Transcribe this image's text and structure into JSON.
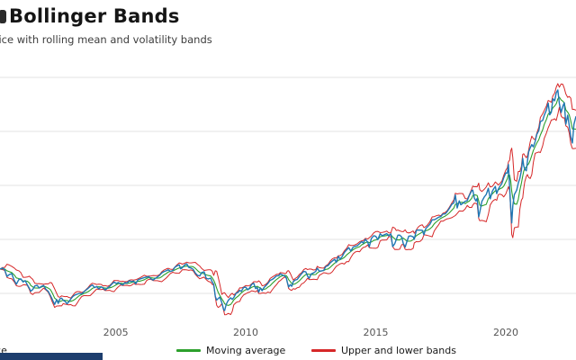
{
  "chart_data": {
    "type": "line",
    "title": "Bollinger Bands",
    "subtitle": "Price with rolling mean and volatility bands",
    "xlabel": "",
    "ylabel": "",
    "grid": true,
    "legend_position": "bottom",
    "x_ticks": [
      2005,
      2010,
      2015,
      2020
    ],
    "xlim": [
      2000.55,
      2022.7
    ],
    "ylim": [
      500,
      5500
    ],
    "y_gridlines": [
      1000,
      2000,
      3000,
      4000,
      5000
    ],
    "series_colors": {
      "price": "#1f77b4",
      "moving_average": "#2ca02c",
      "bands": "#d62728"
    },
    "band_window": 5,
    "band_k": 2,
    "points": [
      [
        2000.55,
        1450
      ],
      [
        2000.65,
        1470
      ],
      [
        2000.73,
        1436
      ],
      [
        2000.82,
        1314
      ],
      [
        2000.9,
        1347
      ],
      [
        2001.0,
        1366
      ],
      [
        2001.1,
        1239
      ],
      [
        2001.18,
        1170
      ],
      [
        2001.27,
        1253
      ],
      [
        2001.35,
        1270
      ],
      [
        2001.44,
        1211
      ],
      [
        2001.52,
        1236
      ],
      [
        2001.6,
        1160
      ],
      [
        2001.68,
        1092
      ],
      [
        2001.73,
        1040
      ],
      [
        2001.81,
        1071
      ],
      [
        2001.89,
        1139
      ],
      [
        2001.98,
        1148
      ],
      [
        2002.06,
        1100
      ],
      [
        2002.15,
        1131
      ],
      [
        2002.23,
        1147
      ],
      [
        2002.31,
        1077
      ],
      [
        2002.4,
        1040
      ],
      [
        2002.48,
        968
      ],
      [
        2002.54,
        912
      ],
      [
        2002.6,
        847
      ],
      [
        2002.65,
        797
      ],
      [
        2002.73,
        885
      ],
      [
        2002.79,
        815
      ],
      [
        2002.85,
        900
      ],
      [
        2002.92,
        912
      ],
      [
        2002.98,
        875
      ],
      [
        2003.06,
        848
      ],
      [
        2003.13,
        807
      ],
      [
        2003.19,
        841
      ],
      [
        2003.27,
        895
      ],
      [
        2003.35,
        944
      ],
      [
        2003.44,
        971
      ],
      [
        2003.52,
        985
      ],
      [
        2003.6,
        1000
      ],
      [
        2003.69,
        990
      ],
      [
        2003.77,
        1026
      ],
      [
        2003.85,
        1058
      ],
      [
        2003.94,
        1095
      ],
      [
        2004.02,
        1131
      ],
      [
        2004.1,
        1157
      ],
      [
        2004.19,
        1109
      ],
      [
        2004.27,
        1126
      ],
      [
        2004.35,
        1084
      ],
      [
        2004.44,
        1121
      ],
      [
        2004.52,
        1096
      ],
      [
        2004.6,
        1064
      ],
      [
        2004.69,
        1103
      ],
      [
        2004.77,
        1130
      ],
      [
        2004.85,
        1173
      ],
      [
        2004.94,
        1211
      ],
      [
        2005.02,
        1181
      ],
      [
        2005.1,
        1204
      ],
      [
        2005.19,
        1172
      ],
      [
        2005.27,
        1157
      ],
      [
        2005.35,
        1199
      ],
      [
        2005.44,
        1191
      ],
      [
        2005.52,
        1234
      ],
      [
        2005.6,
        1218
      ],
      [
        2005.69,
        1228
      ],
      [
        2005.77,
        1176
      ],
      [
        2005.85,
        1249
      ],
      [
        2005.94,
        1268
      ],
      [
        2006.02,
        1280
      ],
      [
        2006.1,
        1294
      ],
      [
        2006.19,
        1303
      ],
      [
        2006.27,
        1311
      ],
      [
        2006.35,
        1270
      ],
      [
        2006.44,
        1246
      ],
      [
        2006.52,
        1278
      ],
      [
        2006.6,
        1303
      ],
      [
        2006.69,
        1336
      ],
      [
        2006.77,
        1378
      ],
      [
        2006.85,
        1401
      ],
      [
        2006.94,
        1418
      ],
      [
        2007.02,
        1438
      ],
      [
        2007.1,
        1407
      ],
      [
        2007.19,
        1421
      ],
      [
        2007.27,
        1482
      ],
      [
        2007.35,
        1508
      ],
      [
        2007.44,
        1530
      ],
      [
        2007.5,
        1455
      ],
      [
        2007.56,
        1474
      ],
      [
        2007.65,
        1527
      ],
      [
        2007.73,
        1549
      ],
      [
        2007.81,
        1481
      ],
      [
        2007.9,
        1468
      ],
      [
        2007.98,
        1445
      ],
      [
        2008.06,
        1378
      ],
      [
        2008.15,
        1331
      ],
      [
        2008.23,
        1323
      ],
      [
        2008.31,
        1386
      ],
      [
        2008.4,
        1400
      ],
      [
        2008.48,
        1280
      ],
      [
        2008.56,
        1267
      ],
      [
        2008.65,
        1283
      ],
      [
        2008.71,
        1213
      ],
      [
        2008.77,
        1166
      ],
      [
        2008.83,
        946
      ],
      [
        2008.88,
        876
      ],
      [
        2008.94,
        903
      ],
      [
        2009.0,
        931
      ],
      [
        2009.08,
        826
      ],
      [
        2009.15,
        700
      ],
      [
        2009.19,
        683
      ],
      [
        2009.25,
        798
      ],
      [
        2009.33,
        873
      ],
      [
        2009.42,
        919
      ],
      [
        2009.48,
        888
      ],
      [
        2009.54,
        923
      ],
      [
        2009.63,
        1003
      ],
      [
        2009.71,
        1021
      ],
      [
        2009.77,
        1057
      ],
      [
        2009.83,
        1036
      ],
      [
        2009.92,
        1110
      ],
      [
        2010.0,
        1115
      ],
      [
        2010.08,
        1067
      ],
      [
        2010.15,
        1104
      ],
      [
        2010.23,
        1169
      ],
      [
        2010.31,
        1187
      ],
      [
        2010.38,
        1089
      ],
      [
        2010.44,
        1110
      ],
      [
        2010.5,
        1023
      ],
      [
        2010.56,
        1102
      ],
      [
        2010.63,
        1049
      ],
      [
        2010.69,
        1102
      ],
      [
        2010.77,
        1141
      ],
      [
        2010.85,
        1184
      ],
      [
        2010.94,
        1242
      ],
      [
        2011.02,
        1258
      ],
      [
        2011.1,
        1286
      ],
      [
        2011.19,
        1327
      ],
      [
        2011.27,
        1326
      ],
      [
        2011.33,
        1364
      ],
      [
        2011.42,
        1340
      ],
      [
        2011.5,
        1321
      ],
      [
        2011.56,
        1292
      ],
      [
        2011.6,
        1204
      ],
      [
        2011.65,
        1120
      ],
      [
        2011.71,
        1162
      ],
      [
        2011.77,
        1131
      ],
      [
        2011.83,
        1220
      ],
      [
        2011.9,
        1247
      ],
      [
        2011.98,
        1258
      ],
      [
        2012.06,
        1312
      ],
      [
        2012.15,
        1366
      ],
      [
        2012.23,
        1408
      ],
      [
        2012.31,
        1398
      ],
      [
        2012.38,
        1320
      ],
      [
        2012.44,
        1278
      ],
      [
        2012.52,
        1362
      ],
      [
        2012.6,
        1379
      ],
      [
        2012.69,
        1407
      ],
      [
        2012.75,
        1466
      ],
      [
        2012.83,
        1412
      ],
      [
        2012.92,
        1416
      ],
      [
        2013.0,
        1426
      ],
      [
        2013.08,
        1498
      ],
      [
        2013.17,
        1515
      ],
      [
        2013.25,
        1569
      ],
      [
        2013.33,
        1598
      ],
      [
        2013.42,
        1631
      ],
      [
        2013.48,
        1573
      ],
      [
        2013.56,
        1686
      ],
      [
        2013.63,
        1633
      ],
      [
        2013.71,
        1682
      ],
      [
        2013.79,
        1757
      ],
      [
        2013.88,
        1806
      ],
      [
        2013.96,
        1848
      ],
      [
        2014.04,
        1783
      ],
      [
        2014.13,
        1859
      ],
      [
        2014.21,
        1872
      ],
      [
        2014.29,
        1884
      ],
      [
        2014.38,
        1924
      ],
      [
        2014.46,
        1960
      ],
      [
        2014.52,
        1931
      ],
      [
        2014.6,
        2003
      ],
      [
        2014.69,
        1946
      ],
      [
        2014.75,
        1862
      ],
      [
        2014.83,
        2018
      ],
      [
        2014.92,
        2068
      ],
      [
        2015.0,
        2059
      ],
      [
        2015.08,
        1995
      ],
      [
        2015.17,
        2105
      ],
      [
        2015.25,
        2068
      ],
      [
        2015.33,
        2086
      ],
      [
        2015.42,
        2107
      ],
      [
        2015.5,
        2063
      ],
      [
        2015.58,
        2104
      ],
      [
        2015.65,
        1868
      ],
      [
        2015.73,
        1920
      ],
      [
        2015.79,
        1995
      ],
      [
        2015.85,
        2079
      ],
      [
        2015.92,
        2080
      ],
      [
        2016.0,
        2044
      ],
      [
        2016.06,
        1922
      ],
      [
        2016.13,
        1859
      ],
      [
        2016.19,
        1948
      ],
      [
        2016.27,
        2060
      ],
      [
        2016.35,
        2065
      ],
      [
        2016.44,
        2047
      ],
      [
        2016.48,
        2001
      ],
      [
        2016.56,
        2166
      ],
      [
        2016.63,
        2174
      ],
      [
        2016.71,
        2171
      ],
      [
        2016.79,
        2168
      ],
      [
        2016.85,
        2085
      ],
      [
        2016.92,
        2199
      ],
      [
        2017.0,
        2239
      ],
      [
        2017.08,
        2279
      ],
      [
        2017.17,
        2364
      ],
      [
        2017.25,
        2363
      ],
      [
        2017.33,
        2384
      ],
      [
        2017.42,
        2412
      ],
      [
        2017.5,
        2423
      ],
      [
        2017.58,
        2470
      ],
      [
        2017.67,
        2472
      ],
      [
        2017.75,
        2519
      ],
      [
        2017.83,
        2575
      ],
      [
        2017.92,
        2648
      ],
      [
        2018.0,
        2674
      ],
      [
        2018.06,
        2824
      ],
      [
        2018.13,
        2581
      ],
      [
        2018.21,
        2714
      ],
      [
        2018.27,
        2641
      ],
      [
        2018.35,
        2670
      ],
      [
        2018.44,
        2705
      ],
      [
        2018.52,
        2718
      ],
      [
        2018.6,
        2816
      ],
      [
        2018.69,
        2902
      ],
      [
        2018.73,
        2914
      ],
      [
        2018.79,
        2768
      ],
      [
        2018.85,
        2712
      ],
      [
        2018.9,
        2760
      ],
      [
        2018.96,
        2416
      ],
      [
        2019.0,
        2507
      ],
      [
        2019.08,
        2704
      ],
      [
        2019.17,
        2784
      ],
      [
        2019.25,
        2834
      ],
      [
        2019.33,
        2946
      ],
      [
        2019.4,
        2752
      ],
      [
        2019.48,
        2890
      ],
      [
        2019.54,
        2942
      ],
      [
        2019.6,
        2980
      ],
      [
        2019.65,
        2847
      ],
      [
        2019.71,
        2926
      ],
      [
        2019.77,
        2977
      ],
      [
        2019.85,
        3038
      ],
      [
        2019.92,
        3141
      ],
      [
        2020.0,
        3231
      ],
      [
        2020.06,
        3226
      ],
      [
        2020.1,
        3386
      ],
      [
        2020.15,
        2954
      ],
      [
        2020.19,
        2585
      ],
      [
        2020.23,
        2305
      ],
      [
        2020.27,
        2627
      ],
      [
        2020.33,
        2830
      ],
      [
        2020.42,
        2912
      ],
      [
        2020.48,
        3044
      ],
      [
        2020.54,
        3130
      ],
      [
        2020.6,
        3271
      ],
      [
        2020.65,
        3500
      ],
      [
        2020.69,
        3363
      ],
      [
        2020.73,
        3298
      ],
      [
        2020.79,
        3270
      ],
      [
        2020.83,
        3443
      ],
      [
        2020.88,
        3622
      ],
      [
        2020.94,
        3695
      ],
      [
        2021.0,
        3756
      ],
      [
        2021.06,
        3714
      ],
      [
        2021.13,
        3811
      ],
      [
        2021.19,
        3943
      ],
      [
        2021.27,
        4019
      ],
      [
        2021.33,
        4181
      ],
      [
        2021.42,
        4204
      ],
      [
        2021.48,
        4297
      ],
      [
        2021.56,
        4395
      ],
      [
        2021.63,
        4523
      ],
      [
        2021.69,
        4307
      ],
      [
        2021.75,
        4357
      ],
      [
        2021.81,
        4605
      ],
      [
        2021.88,
        4567
      ],
      [
        2021.94,
        4713
      ],
      [
        2022.0,
        4766
      ],
      [
        2022.06,
        4516
      ],
      [
        2022.13,
        4349
      ],
      [
        2022.19,
        4463
      ],
      [
        2022.25,
        4530
      ],
      [
        2022.31,
        4132
      ],
      [
        2022.38,
        4300
      ],
      [
        2022.44,
        4108
      ],
      [
        2022.5,
        3900
      ],
      [
        2022.56,
        3785
      ],
      [
        2022.62,
        4130
      ],
      [
        2022.7,
        4280
      ]
    ]
  },
  "legend": {
    "items": [
      {
        "label": "Price",
        "color": "#1f77b4"
      },
      {
        "label": "Moving average",
        "color": "#2ca02c"
      },
      {
        "label": "Upper and lower bands",
        "color": "#d62728"
      }
    ]
  },
  "footer": {
    "bar_color": "#1d3e6e"
  }
}
